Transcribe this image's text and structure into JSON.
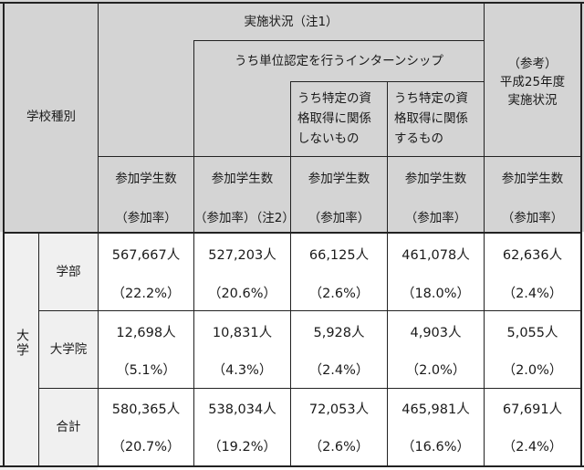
{
  "header": {
    "school_type": "学校種別",
    "implementation_status": "実施状況（注1）",
    "credit_internship": "うち単位認定を行うインターンシップ",
    "not_related_line1": "うち特定の資",
    "not_related_line2": "格取得に関係",
    "not_related_line3": "しないもの",
    "related_line1": "うち特定の資",
    "related_line2": "格取得に関係",
    "related_line3": "するもの",
    "reference_line1": "（参考）",
    "reference_line2": "平成25年度",
    "reference_line3": "実施状況",
    "participants": "参加学生数",
    "rate": "（参加率）",
    "rate_note2": "（参加率）（注2）"
  },
  "group_label": "大学",
  "rows": [
    {
      "label": "学部",
      "values": [
        "567,667人",
        "527,203人",
        "66,125人",
        "461,078人",
        "62,636人"
      ],
      "rates": [
        "（22.2%）",
        "（20.6%）",
        "（2.6%）",
        "（18.0%）",
        "（2.4%）"
      ]
    },
    {
      "label": "大学院",
      "values": [
        "12,698人",
        "10,831人",
        "5,928人",
        "4,903人",
        "5,055人"
      ],
      "rates": [
        "（5.1%）",
        "（4.3%）",
        "（2.4%）",
        "（2.0%）",
        "（2.0%）"
      ]
    },
    {
      "label": "合計",
      "values": [
        "580,365人",
        "538,034人",
        "72,053人",
        "465,981人",
        "67,691人"
      ],
      "rates": [
        "（20.7%）",
        "（19.2%）",
        "（2.6%）",
        "（16.6%）",
        "（2.4%）"
      ]
    }
  ],
  "colors": {
    "header_bg": "#d4d4d4",
    "row_header_bg": "#f0f0f0",
    "border": "#222222"
  }
}
